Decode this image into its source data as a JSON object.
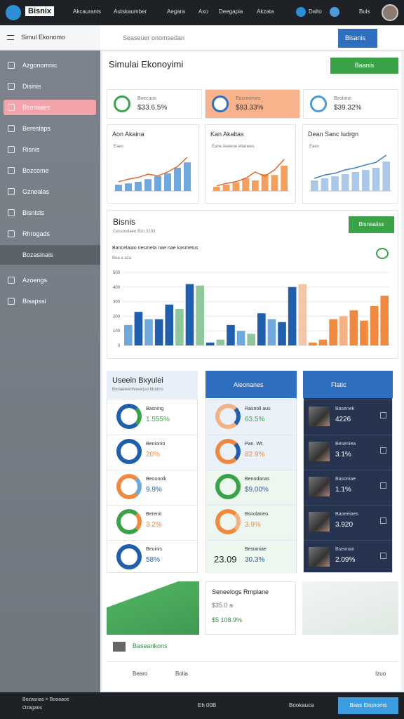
{
  "topbar": {
    "brand": "Bisnix",
    "nav": [
      "Akcaurants",
      "Autskaumber",
      "Aegara",
      "Axo",
      "Deegapia",
      "Akzata"
    ],
    "user": [
      "Dalto",
      "Buls"
    ]
  },
  "sidebar": {
    "title": "Simul Ekonomo",
    "items": [
      "Azgonomnic",
      "Disinis",
      "Bsemiaes",
      "Bereslaps",
      "Risnis",
      "Bozcome",
      "Gznealas",
      "Bisnists",
      "Rhrogads"
    ],
    "section": "Bozasinais",
    "items2": [
      "Azoengs",
      "Bisapssi"
    ]
  },
  "search": {
    "placeholder": "Seaseuer onomsedan",
    "button": "Bisanis"
  },
  "header": {
    "title": "Simulai Ekonoyimi",
    "button": "Baanis"
  },
  "kpis": [
    {
      "label": "Bxecuos",
      "value": "$33.6.5%"
    },
    {
      "label": "Basreomes",
      "value": "$93.33%"
    },
    {
      "label": "Bzolons",
      "value": "$39.32%"
    }
  ],
  "mini_charts": [
    {
      "title": "Aon Akaina",
      "subtitle": "Eaeo",
      "color": "#6fa8dc",
      "line_color": "#e0662f",
      "ylim": [
        0,
        100
      ],
      "bars": [
        15,
        18,
        22,
        28,
        35,
        42,
        55,
        68
      ],
      "line": [
        22,
        28,
        32,
        40,
        36,
        45,
        58,
        80
      ]
    },
    {
      "title": "Kan Akaltas",
      "subtitle": "Eane Aeeeoe ebanees",
      "color": "#f4a05c",
      "line_color": "#e0662f",
      "ylim": [
        0,
        100
      ],
      "bars": [
        10,
        15,
        20,
        30,
        25,
        40,
        38,
        60
      ],
      "line": [
        12,
        18,
        22,
        30,
        45,
        35,
        50,
        75
      ]
    },
    {
      "title": "Dean Sanc ludrgn",
      "subtitle": "Eaeo",
      "color": "#a9c8ea",
      "line_color": "#3b7fc4",
      "ylim": [
        0,
        100
      ],
      "bars": [
        25,
        30,
        35,
        40,
        45,
        50,
        55,
        70
      ],
      "line": [
        30,
        38,
        42,
        50,
        55,
        62,
        68,
        85
      ]
    }
  ],
  "main_chart": {
    "title": "Bisnis",
    "button": "Bisnaaiiss",
    "subtitle": "Cessosdaeo Bzo 3103",
    "chart_title": "Bancelaiao nesmeta nae nae kasmetus",
    "legend": "Bea a aza",
    "ylim": [
      0,
      500
    ],
    "yticks": [
      0,
      100,
      200,
      300,
      400,
      500
    ],
    "values": [
      140,
      230,
      180,
      180,
      280,
      250,
      420,
      410,
      20,
      40,
      140,
      100,
      80,
      220,
      180,
      160,
      400,
      420,
      20,
      40,
      180,
      200,
      240,
      170,
      270,
      340
    ],
    "colors": [
      "#6fa8dc",
      "#1f5fae",
      "#6fa8dc",
      "#1f5fae",
      "#1f5fae",
      "#8fc79a",
      "#1f5fae",
      "#8fc79a",
      "#1f5fae",
      "#8fc79a",
      "#1f5fae",
      "#6fa8dc",
      "#8fc79a",
      "#1f5fae",
      "#6fa8dc",
      "#1f5fae",
      "#1f5fae",
      "#f4c7a8",
      "#f0883e",
      "#f0883e",
      "#f0883e",
      "#f4b183",
      "#f0883e",
      "#f0883e",
      "#f0883e",
      "#f0883e"
    ]
  },
  "panels": [
    {
      "title": "Useein Bxyulei",
      "subtitle": "Bonaeieenhneei(oo bbatcis",
      "rows": [
        {
          "label": "Basning",
          "value": "1.555%"
        },
        {
          "label": "Benionio",
          "value": "20%"
        },
        {
          "label": "Beoonolk",
          "value": "9.9%"
        },
        {
          "label": "Berenit",
          "value": "3.2%"
        },
        {
          "label": "Beuinis",
          "value": "58%"
        }
      ]
    },
    {
      "title": "Aleonanes",
      "rows": [
        {
          "label": "Rasnoll aus",
          "value": "63.5%"
        },
        {
          "label": "Pan. Wt.",
          "value": "82.9%"
        },
        {
          "label": "Benodanas",
          "value": "$9.00%"
        },
        {
          "label": "Bsnolaneo",
          "value": "3.9%"
        },
        {
          "label": "Besianiae",
          "value": "30.3%",
          "big": "23.09"
        }
      ]
    },
    {
      "title": "Flatic",
      "rows": [
        {
          "label": "Basenek",
          "value": "4226"
        },
        {
          "label": "Beseniea",
          "value": "3.1%"
        },
        {
          "label": "Basoniae",
          "value": "1.1%"
        },
        {
          "label": "Baoeeiaes",
          "value": "3.920"
        },
        {
          "label": "Bsexnan",
          "value": "2.09%"
        }
      ]
    }
  ],
  "map": {
    "title": "Seneelogs Rmplane",
    "line1": "$35.0 a",
    "line2": "$5 108.9%"
  },
  "footer": {
    "section": "Basearikons",
    "items": [
      "Bearo",
      "Bolia",
      "Izuo"
    ]
  },
  "bottombar": {
    "left": "Bozasnas > Booaaoe",
    "left2": "Ozagaos",
    "center": "Eh 00B",
    "right": "Bookauca",
    "button": "Bxas Ekonoms"
  }
}
